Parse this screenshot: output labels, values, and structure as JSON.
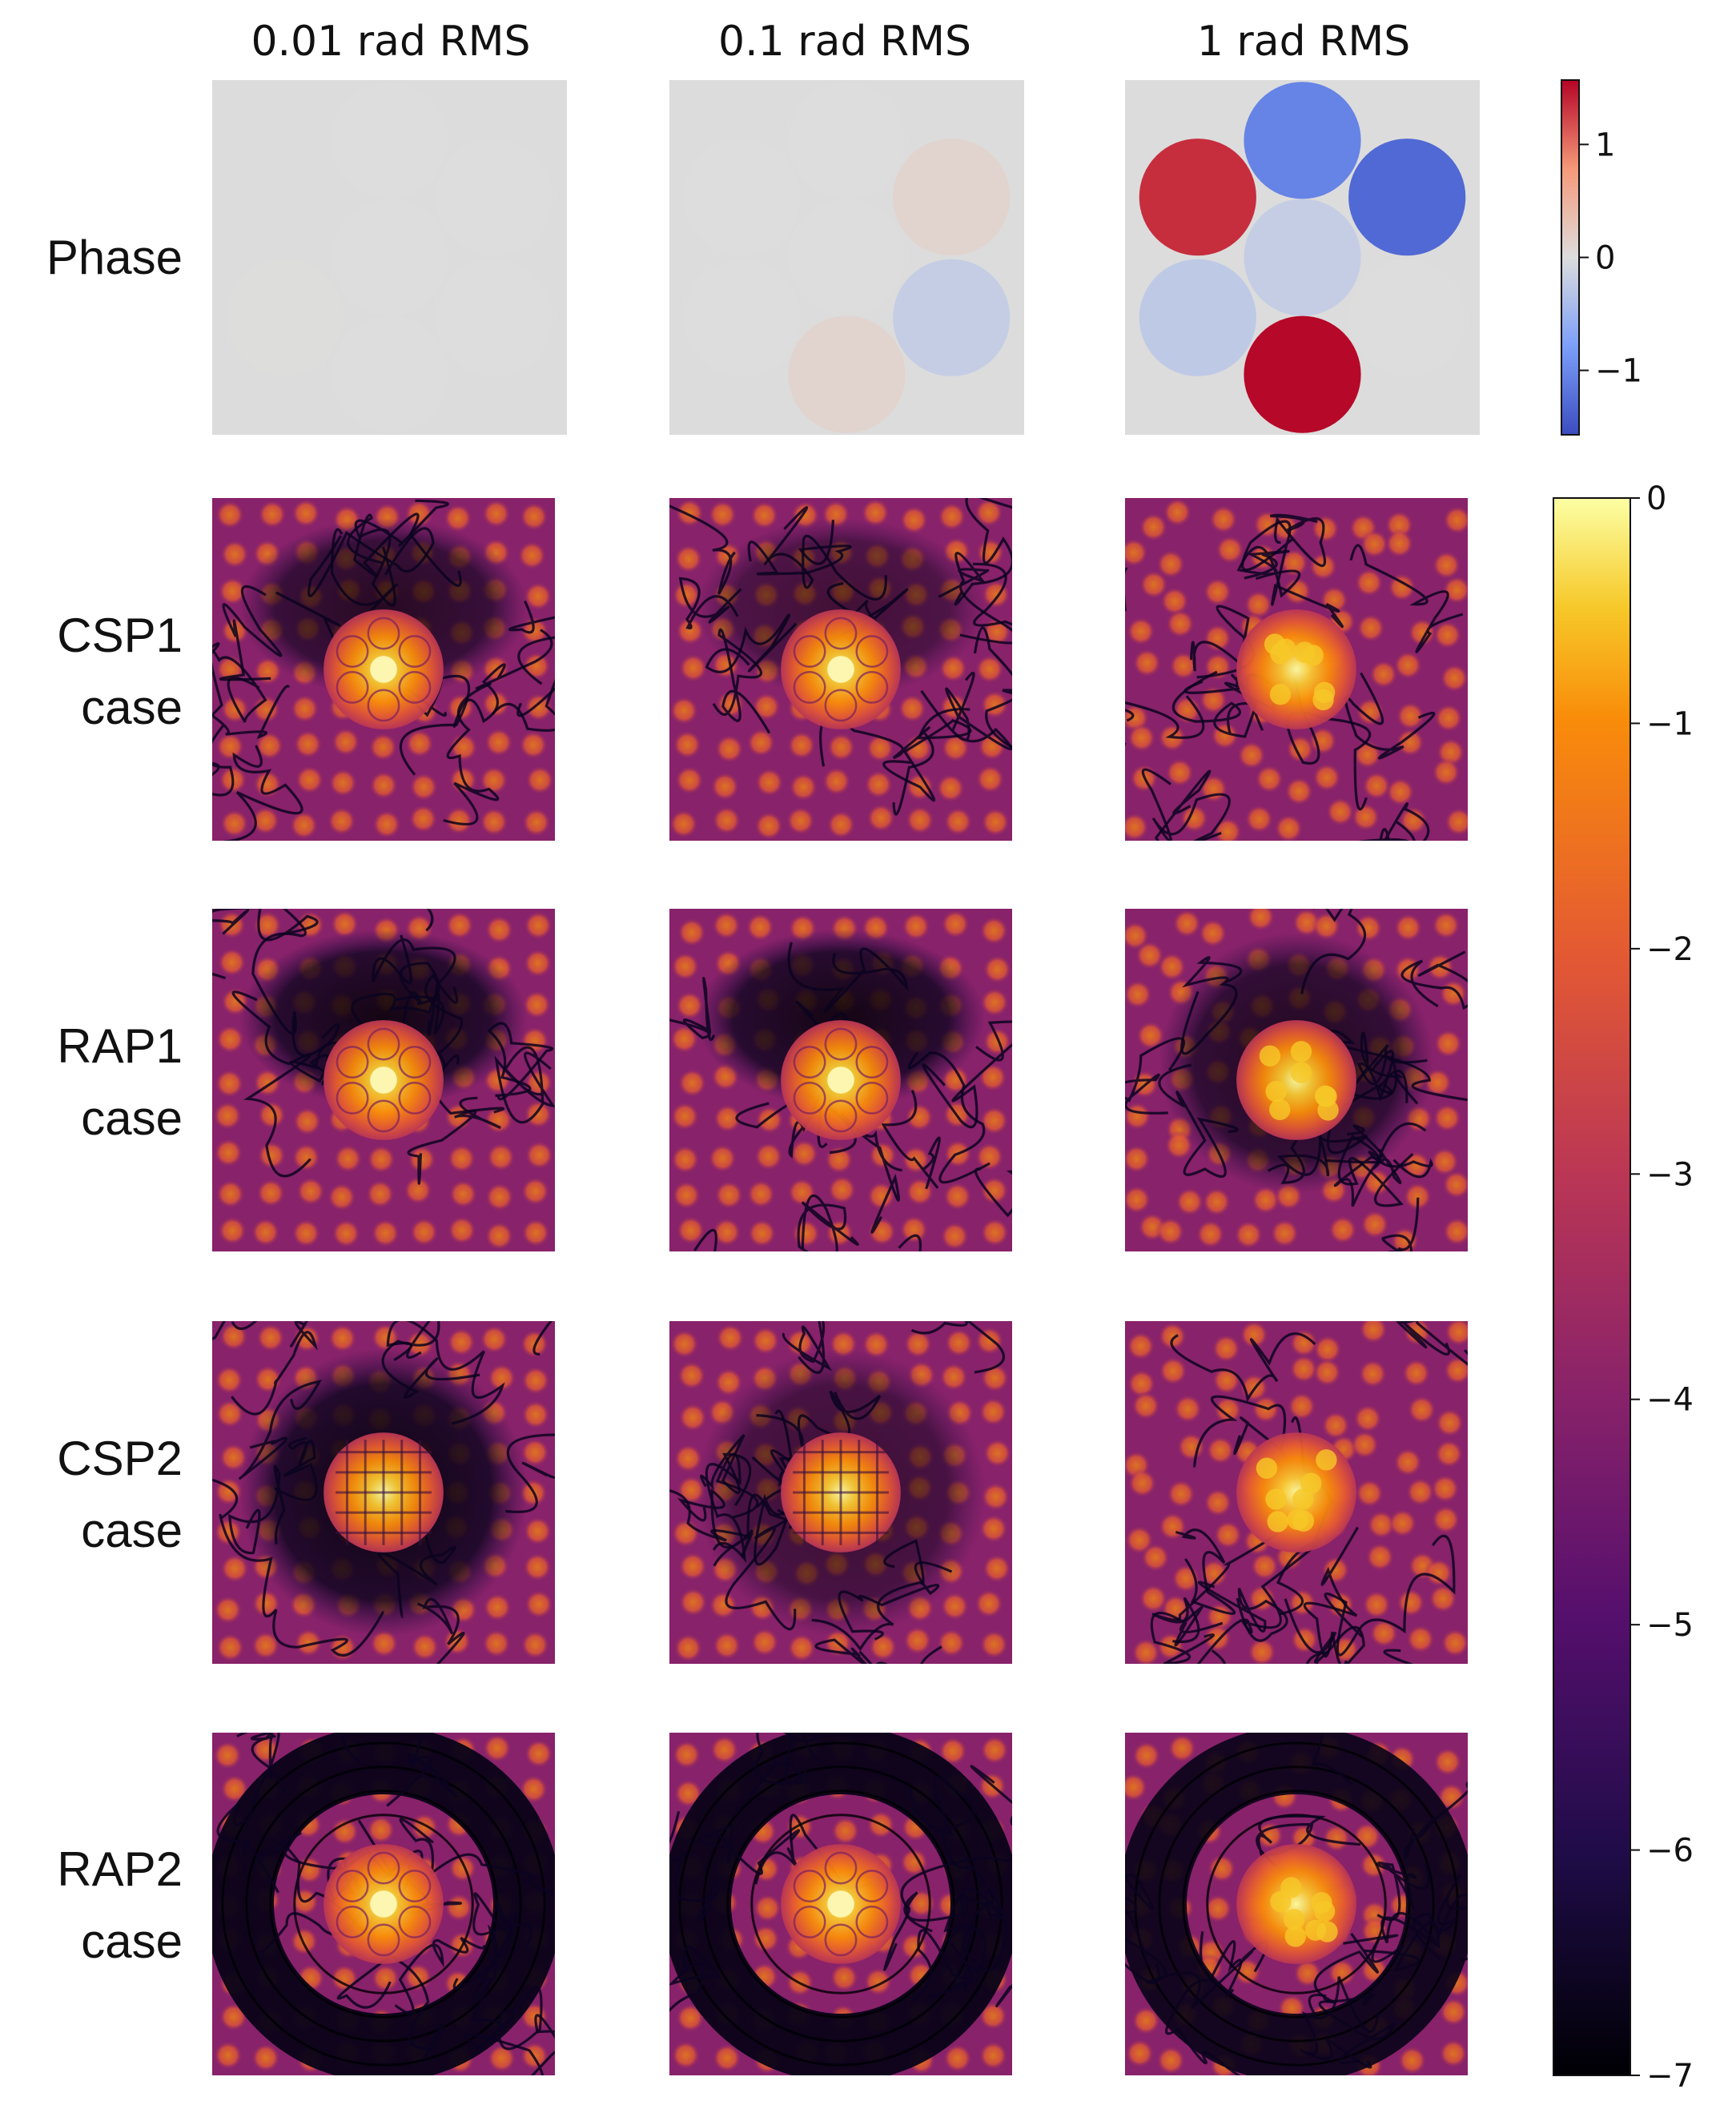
{
  "chart_data": {
    "type": "heatmap",
    "columns": [
      "0.01 rad RMS",
      "0.1 rad RMS",
      "1 rad RMS"
    ],
    "rows": [
      {
        "label": [
          "Phase"
        ],
        "kind": "phase"
      },
      {
        "label": [
          "CSP1",
          "case"
        ],
        "kind": "psf"
      },
      {
        "label": [
          "RAP1",
          "case"
        ],
        "kind": "psf"
      },
      {
        "label": [
          "CSP2",
          "case"
        ],
        "kind": "psf"
      },
      {
        "label": [
          "RAP2",
          "case"
        ],
        "kind": "psf"
      }
    ],
    "phase_colorbar": {
      "colormap": "coolwarm",
      "range": [
        -1.57,
        1.57
      ],
      "ticks": [
        -1,
        0,
        1
      ],
      "tick_labels": [
        "−1",
        "0",
        "1"
      ]
    },
    "intensity_colorbar": {
      "colormap": "inferno",
      "range": [
        -7,
        0
      ],
      "ticks": [
        0,
        -1,
        -2,
        -3,
        -4,
        -5,
        -6,
        -7
      ],
      "tick_labels": [
        "0",
        "−1",
        "−2",
        "−3",
        "−4",
        "−5",
        "−6",
        "−7"
      ]
    },
    "phase_maps": [
      {
        "segments": [
          {
            "hex": 0,
            "value": 0
          },
          {
            "hex": 1,
            "value": 0
          },
          {
            "hex": 2,
            "value": 0
          },
          {
            "hex": 3,
            "value": -0.01
          },
          {
            "hex": 4,
            "value": 0.005
          },
          {
            "hex": 5,
            "value": 0
          },
          {
            "hex": 6,
            "value": 0
          }
        ]
      },
      {
        "segments": [
          {
            "hex": 0,
            "value": 0
          },
          {
            "hex": 1,
            "value": 0
          },
          {
            "hex": 2,
            "value": 0.12
          },
          {
            "hex": 3,
            "value": 0
          },
          {
            "hex": 4,
            "value": 0
          },
          {
            "hex": 5,
            "value": 0.12
          },
          {
            "hex": 6,
            "value": -0.2
          }
        ]
      },
      {
        "segments": [
          {
            "hex": 0,
            "value": -0.2
          },
          {
            "hex": 1,
            "value": -1.05
          },
          {
            "hex": 2,
            "value": -1.3
          },
          {
            "hex": 3,
            "value": 1.35
          },
          {
            "hex": 4,
            "value": -0.25
          },
          {
            "hex": 5,
            "value": 1.55
          },
          {
            "hex": 6,
            "value": 0
          }
        ]
      }
    ],
    "psf_params": [
      [
        {
          "shape": "hex",
          "halo": "arch",
          "dark": 0.55,
          "aberr": 0.0
        },
        {
          "shape": "hex",
          "halo": "arch",
          "dark": 0.35,
          "aberr": 0.1
        },
        {
          "shape": "hex",
          "halo": "none",
          "dark": 0.1,
          "aberr": 1.0
        }
      ],
      [
        {
          "shape": "hex",
          "halo": "arch",
          "dark": 0.7,
          "aberr": 0.0
        },
        {
          "shape": "hex",
          "halo": "arch",
          "dark": 0.7,
          "aberr": 0.1
        },
        {
          "shape": "hex",
          "halo": "ring",
          "dark": 0.55,
          "aberr": 1.0
        }
      ],
      [
        {
          "shape": "grid",
          "halo": "disk",
          "dark": 0.8,
          "aberr": 0.0
        },
        {
          "shape": "grid",
          "halo": "disk",
          "dark": 0.45,
          "aberr": 0.1
        },
        {
          "shape": "hex",
          "halo": "none",
          "dark": 0.15,
          "aberr": 1.0
        }
      ],
      [
        {
          "shape": "hex",
          "halo": "annulus",
          "dark": 0.8,
          "aberr": 0.0
        },
        {
          "shape": "hex",
          "halo": "annulus",
          "dark": 0.8,
          "aberr": 0.1
        },
        {
          "shape": "hex",
          "halo": "annulus",
          "dark": 0.75,
          "aberr": 1.0
        }
      ]
    ]
  }
}
